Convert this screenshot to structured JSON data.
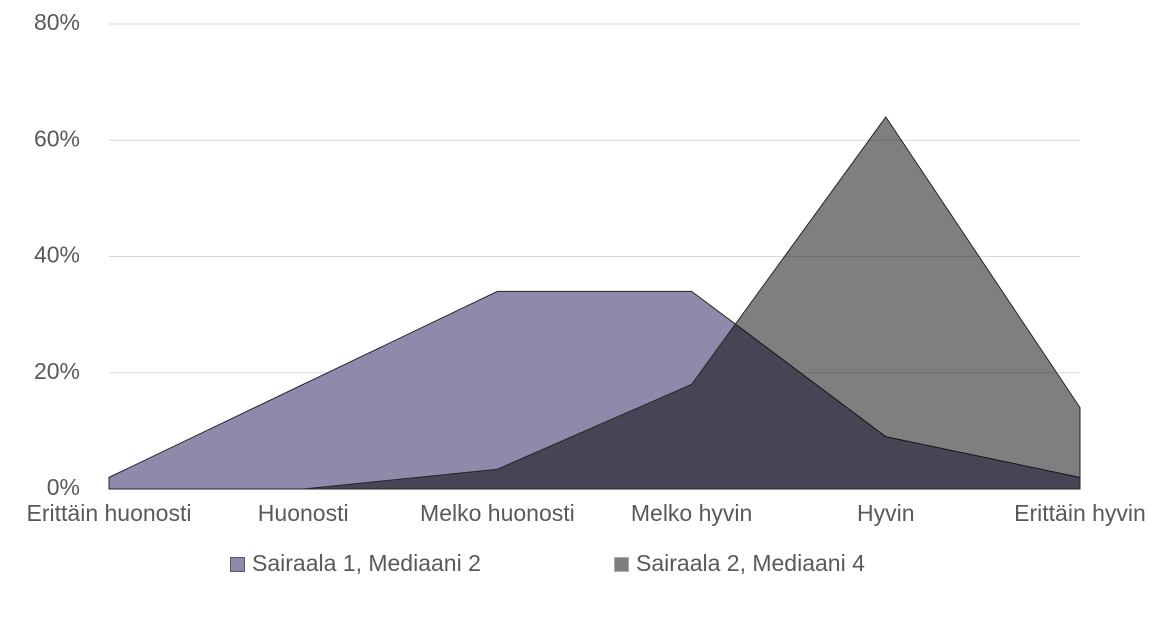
{
  "chart_data": {
    "type": "area",
    "categories": [
      "Erittäin huonosti",
      "Huonosti",
      "Melko huonosti",
      "Melko hyvin",
      "Hyvin",
      "Erittäin hyvin"
    ],
    "series": [
      {
        "name": "Sairaala 1, Mediaani 2",
        "color": "#8f8aab",
        "opacity": 1,
        "values": [
          2,
          18,
          34,
          34,
          9,
          2
        ]
      },
      {
        "name": "Sairaala 2, Mediaani 4",
        "color": "#000000",
        "opacity": 0.5,
        "values": [
          0,
          0,
          3.4,
          18,
          64,
          14
        ]
      }
    ],
    "ylim": [
      0,
      80
    ],
    "yticks": [
      {
        "value": 0,
        "label": "0%"
      },
      {
        "value": 20,
        "label": "20%"
      },
      {
        "value": 40,
        "label": "40%"
      },
      {
        "value": 60,
        "label": "60%"
      },
      {
        "value": 80,
        "label": "80%"
      }
    ],
    "grid": true,
    "legend": "bottom"
  }
}
